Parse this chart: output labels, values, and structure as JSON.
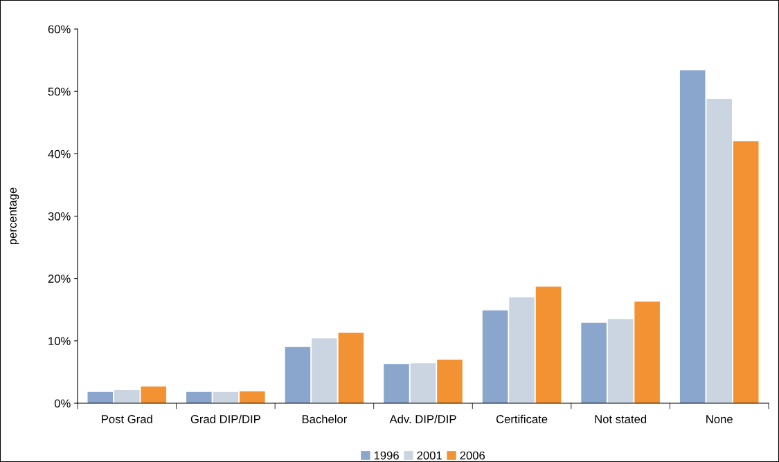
{
  "chart_data": {
    "type": "bar",
    "ylabel": "percentage",
    "categories": [
      "Post Grad",
      "Grad DIP/DIP",
      "Bachelor",
      "Adv. DIP/DIP",
      "Certificate",
      "Not stated",
      "None"
    ],
    "series": [
      {
        "name": "1996",
        "color": "#8aa6cc",
        "values": [
          1.8,
          1.8,
          9.0,
          6.3,
          14.9,
          12.9,
          53.4
        ]
      },
      {
        "name": "2001",
        "color": "#cbd5e2",
        "values": [
          2.1,
          1.8,
          10.4,
          6.4,
          17.0,
          13.5,
          48.8
        ]
      },
      {
        "name": "2006",
        "color": "#f39232",
        "values": [
          2.7,
          1.9,
          11.3,
          7.0,
          18.7,
          16.3,
          42.0
        ]
      }
    ],
    "ylim": [
      0,
      60
    ],
    "yticks": [
      {
        "value": 0,
        "label": "0%"
      },
      {
        "value": 10,
        "label": "10%"
      },
      {
        "value": 20,
        "label": "20%"
      },
      {
        "value": 30,
        "label": "30%"
      },
      {
        "value": 40,
        "label": "40%"
      },
      {
        "value": 50,
        "label": "50%"
      },
      {
        "value": 60,
        "label": "60%"
      }
    ],
    "grid": false,
    "legend": "bottom"
  }
}
